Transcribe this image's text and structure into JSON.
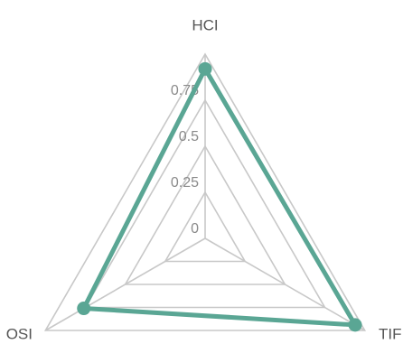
{
  "chart_data": {
    "type": "radar",
    "axes": [
      "HCI",
      "TIF",
      "OSI"
    ],
    "range": [
      0,
      1
    ],
    "ticks": [
      0,
      0.25,
      0.5,
      0.75
    ],
    "tick_labels": [
      "0",
      "0.25",
      "0.5",
      "0.75"
    ],
    "series": [
      {
        "values": [
          0.92,
          0.94,
          0.76
        ],
        "color": "#5aa694"
      }
    ],
    "grid_color": "#c8c8c8",
    "legend": "none"
  }
}
